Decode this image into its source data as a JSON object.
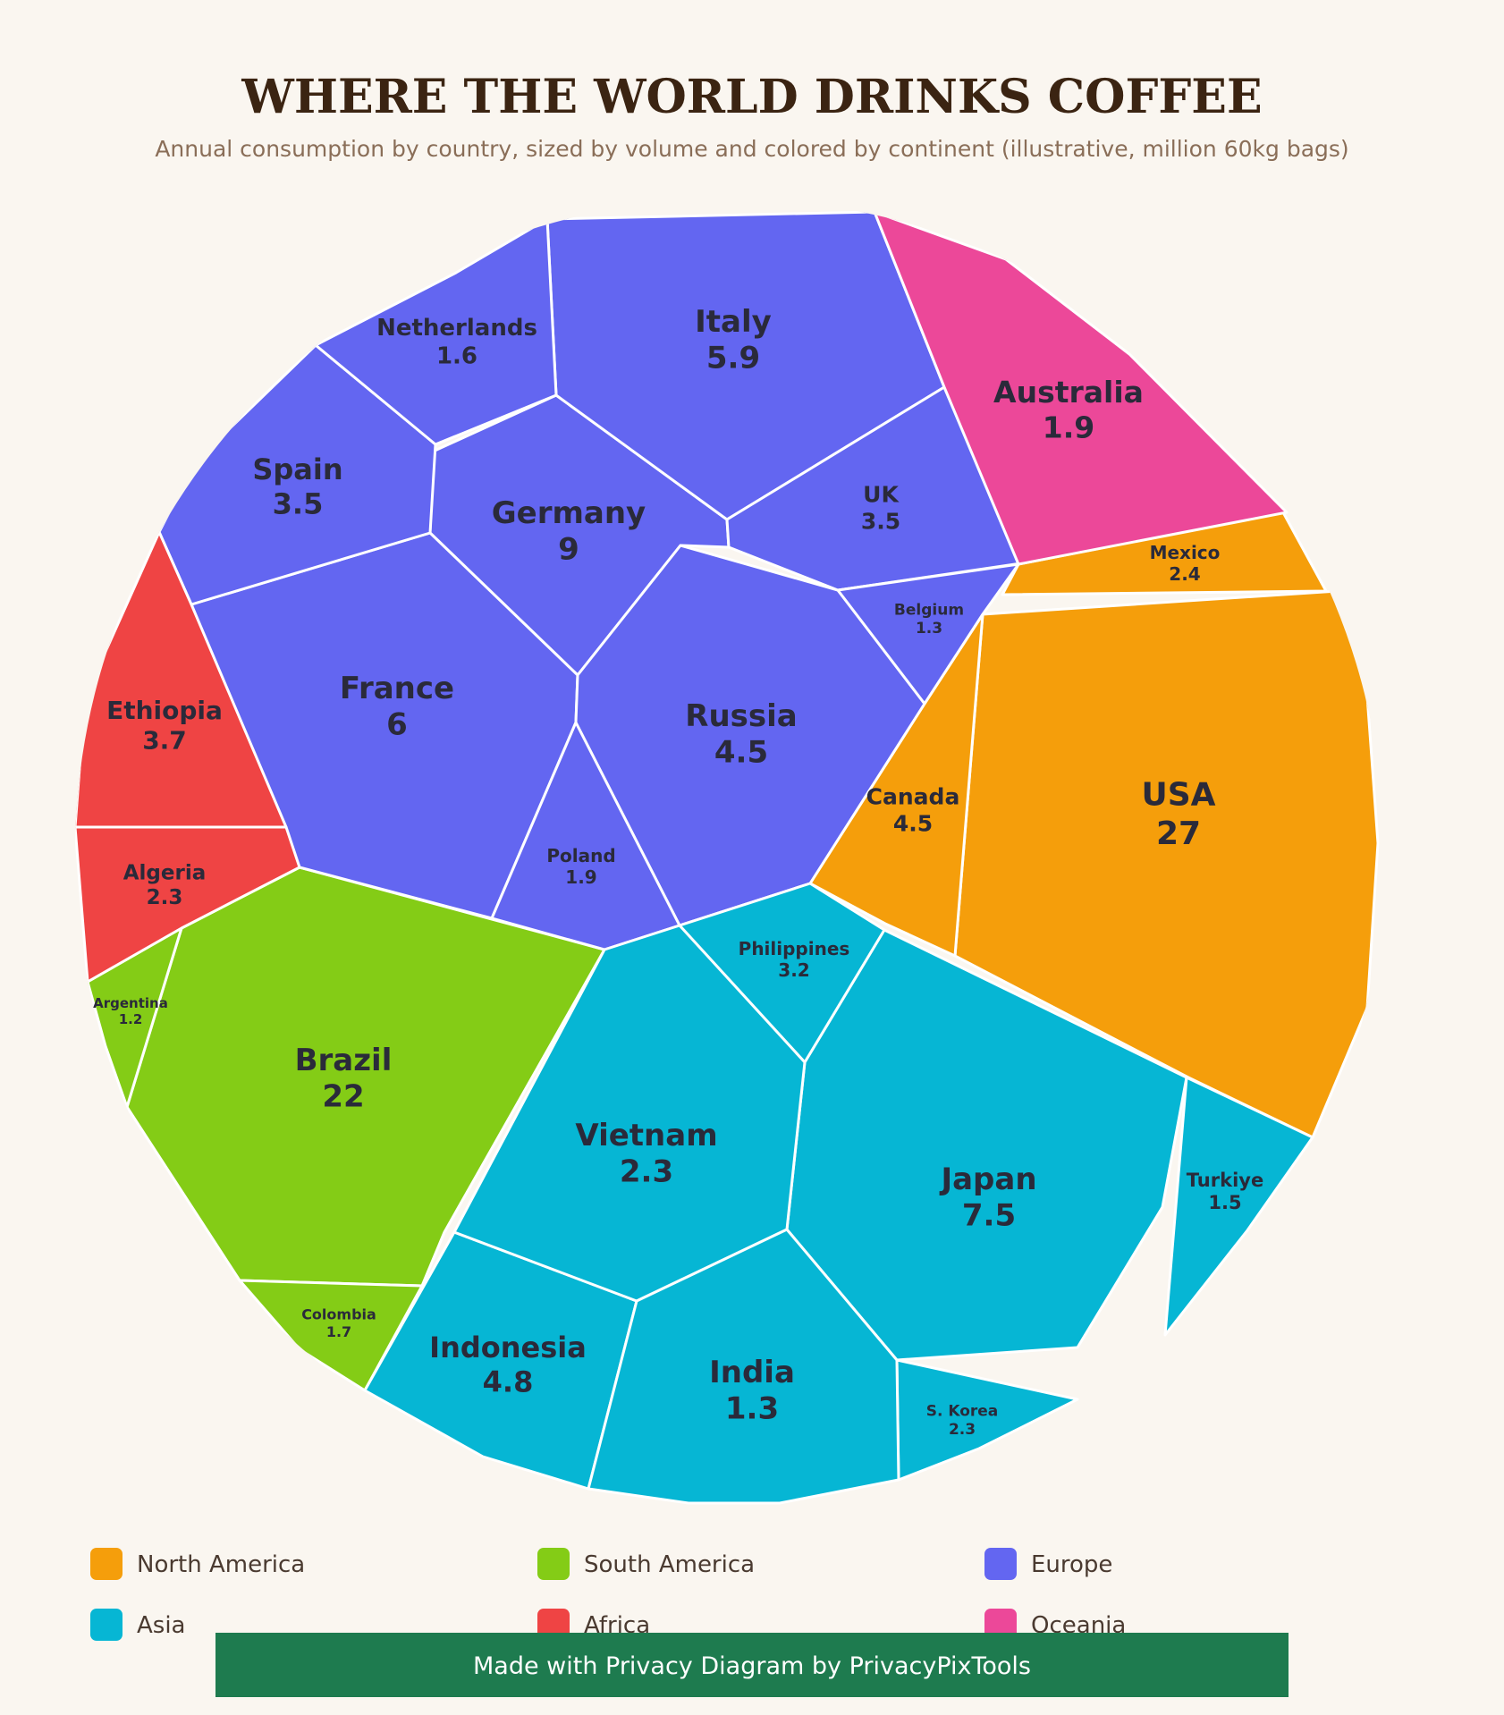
{
  "chart_data": {
    "type": "voronoi-treemap",
    "title": "WHERE THE WORLD DRINKS COFFEE",
    "subtitle": "Annual consumption by country, sized by volume and colored by continent (illustrative, million 60kg bags)",
    "legend_position": "bottom",
    "continents": [
      {
        "name": "North America",
        "color": "#f59e0b"
      },
      {
        "name": "South America",
        "color": "#84cc16"
      },
      {
        "name": "Europe",
        "color": "#6366f1"
      },
      {
        "name": "Asia",
        "color": "#06b6d4"
      },
      {
        "name": "Africa",
        "color": "#ef4444"
      },
      {
        "name": "Oceania",
        "color": "#ec4899"
      }
    ],
    "cells": [
      {
        "name": "USA",
        "value": "27",
        "continent": "North America"
      },
      {
        "name": "Canada",
        "value": "4.5",
        "continent": "North America"
      },
      {
        "name": "Mexico",
        "value": "2.4",
        "continent": "North America"
      },
      {
        "name": "Brazil",
        "value": "22",
        "continent": "South America"
      },
      {
        "name": "Colombia",
        "value": "1.7",
        "continent": "South America"
      },
      {
        "name": "Argentina",
        "value": "1.2",
        "continent": "South America"
      },
      {
        "name": "Germany",
        "value": "9",
        "continent": "Europe"
      },
      {
        "name": "France",
        "value": "6",
        "continent": "Europe"
      },
      {
        "name": "Italy",
        "value": "5.9",
        "continent": "Europe"
      },
      {
        "name": "Russia",
        "value": "4.5",
        "continent": "Europe"
      },
      {
        "name": "Spain",
        "value": "3.5",
        "continent": "Europe"
      },
      {
        "name": "UK",
        "value": "3.5",
        "continent": "Europe"
      },
      {
        "name": "Poland",
        "value": "1.9",
        "continent": "Europe"
      },
      {
        "name": "Netherlands",
        "value": "1.6",
        "continent": "Europe"
      },
      {
        "name": "Belgium",
        "value": "1.3",
        "continent": "Europe"
      },
      {
        "name": "Japan",
        "value": "7.5",
        "continent": "Asia"
      },
      {
        "name": "Indonesia",
        "value": "4.8",
        "continent": "Asia"
      },
      {
        "name": "Philippines",
        "value": "3.2",
        "continent": "Asia"
      },
      {
        "name": "Vietnam",
        "value": "2.3",
        "continent": "Asia"
      },
      {
        "name": "S. Korea",
        "value": "2.3",
        "continent": "Asia"
      },
      {
        "name": "Turkiye",
        "value": "1.5",
        "continent": "Asia"
      },
      {
        "name": "India",
        "value": "1.3",
        "continent": "Asia"
      },
      {
        "name": "Ethiopia",
        "value": "3.7",
        "continent": "Africa"
      },
      {
        "name": "Algeria",
        "value": "2.3",
        "continent": "Africa"
      },
      {
        "name": "Australia",
        "value": "1.9",
        "continent": "Oceania"
      }
    ]
  },
  "banner": {
    "text": "Made with Privacy Diagram by PrivacyPixTools"
  }
}
